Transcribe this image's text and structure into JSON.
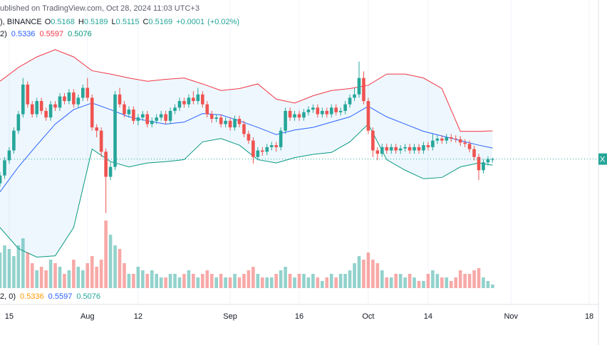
{
  "chart_data": {
    "type": "candlestick",
    "header": "ublished on TradingView.com, Oct 28, 2024 11:03 UTC+3",
    "symbol": "), BINANCE",
    "ohlc_labels": [
      "O",
      "H",
      "L",
      "C"
    ],
    "change": "+0.0001",
    "change_pct": "(+0.02%)",
    "indicator_label": "2)",
    "volume_indicator_label": "2, 0)",
    "price_label": "X",
    "up_color": "#26a69a",
    "down_color": "#ef5350",
    "xlim": [
      "2024-07-13",
      "2024-11-20"
    ],
    "ylim": [
      0.321,
      0.726
    ],
    "volume_lim": [
      0,
      100
    ],
    "xticks": [
      {
        "value": "2024-07-15",
        "label": "15"
      },
      {
        "value": "2024-08-01",
        "label": "Aug"
      },
      {
        "value": "2024-08-12",
        "label": "12"
      },
      {
        "value": "2024-09-01",
        "label": "Sep"
      },
      {
        "value": "2024-09-16",
        "label": "16"
      },
      {
        "value": "2024-10-01",
        "label": "Oct"
      },
      {
        "value": "2024-10-14",
        "label": "14"
      },
      {
        "value": "2024-11-01",
        "label": "Nov"
      },
      {
        "value": "2024-11-18",
        "label": "18"
      }
    ],
    "x": [
      "2024-07-13",
      "2024-07-14",
      "2024-07-15",
      "2024-07-16",
      "2024-07-17",
      "2024-07-18",
      "2024-07-19",
      "2024-07-20",
      "2024-07-21",
      "2024-07-22",
      "2024-07-23",
      "2024-07-24",
      "2024-07-25",
      "2024-07-26",
      "2024-07-27",
      "2024-07-28",
      "2024-07-29",
      "2024-07-30",
      "2024-07-31",
      "2024-08-01",
      "2024-08-02",
      "2024-08-03",
      "2024-08-04",
      "2024-08-05",
      "2024-08-06",
      "2024-08-07",
      "2024-08-08",
      "2024-08-09",
      "2024-08-10",
      "2024-08-11",
      "2024-08-12",
      "2024-08-13",
      "2024-08-14",
      "2024-08-15",
      "2024-08-16",
      "2024-08-17",
      "2024-08-18",
      "2024-08-19",
      "2024-08-20",
      "2024-08-21",
      "2024-08-22",
      "2024-08-23",
      "2024-08-24",
      "2024-08-25",
      "2024-08-26",
      "2024-08-27",
      "2024-08-28",
      "2024-08-29",
      "2024-08-30",
      "2024-08-31",
      "2024-09-01",
      "2024-09-02",
      "2024-09-03",
      "2024-09-04",
      "2024-09-05",
      "2024-09-06",
      "2024-09-07",
      "2024-09-08",
      "2024-09-09",
      "2024-09-10",
      "2024-09-11",
      "2024-09-12",
      "2024-09-13",
      "2024-09-14",
      "2024-09-15",
      "2024-09-16",
      "2024-09-17",
      "2024-09-18",
      "2024-09-19",
      "2024-09-20",
      "2024-09-21",
      "2024-09-22",
      "2024-09-23",
      "2024-09-24",
      "2024-09-25",
      "2024-09-26",
      "2024-09-27",
      "2024-09-28",
      "2024-09-29",
      "2024-09-30",
      "2024-10-01",
      "2024-10-02",
      "2024-10-03",
      "2024-10-04",
      "2024-10-05",
      "2024-10-06",
      "2024-10-07",
      "2024-10-08",
      "2024-10-09",
      "2024-10-10",
      "2024-10-11",
      "2024-10-12",
      "2024-10-13",
      "2024-10-14",
      "2024-10-15",
      "2024-10-16",
      "2024-10-17",
      "2024-10-18",
      "2024-10-19",
      "2024-10-20",
      "2024-10-21",
      "2024-10-22",
      "2024-10-23",
      "2024-10-24",
      "2024-10-25",
      "2024-10-26",
      "2024-10-27",
      "2024-10-28"
    ],
    "open": [
      0.48,
      0.492,
      0.515,
      0.53,
      0.56,
      0.585,
      0.63,
      0.6,
      0.585,
      0.605,
      0.59,
      0.58,
      0.6,
      0.595,
      0.612,
      0.605,
      0.618,
      0.6,
      0.61,
      0.625,
      0.61,
      0.565,
      0.56,
      0.528,
      0.49,
      0.505,
      0.615,
      0.6,
      0.585,
      0.592,
      0.575,
      0.58,
      0.585,
      0.57,
      0.575,
      0.58,
      0.585,
      0.575,
      0.59,
      0.595,
      0.605,
      0.6,
      0.61,
      0.605,
      0.615,
      0.6,
      0.585,
      0.578,
      0.58,
      0.57,
      0.575,
      0.565,
      0.578,
      0.57,
      0.555,
      0.545,
      0.52,
      0.53,
      0.528,
      0.535,
      0.538,
      0.535,
      0.56,
      0.59,
      0.58,
      0.585,
      0.58,
      0.588,
      0.592,
      0.595,
      0.585,
      0.59,
      0.585,
      0.595,
      0.588,
      0.59,
      0.6,
      0.61,
      0.615,
      0.64,
      0.605,
      0.56,
      0.53,
      0.525,
      0.535,
      0.53,
      0.535,
      0.53,
      0.533,
      0.535,
      0.53,
      0.535,
      0.53,
      0.538,
      0.535,
      0.545,
      0.548,
      0.545,
      0.55,
      0.548,
      0.547,
      0.542,
      0.54,
      0.532,
      0.52,
      0.5,
      0.512,
      0.5168
    ],
    "high": [
      0.497,
      0.52,
      0.535,
      0.565,
      0.59,
      0.64,
      0.635,
      0.605,
      0.61,
      0.61,
      0.595,
      0.605,
      0.605,
      0.617,
      0.617,
      0.623,
      0.623,
      0.615,
      0.63,
      0.64,
      0.615,
      0.57,
      0.565,
      0.533,
      0.512,
      0.62,
      0.625,
      0.605,
      0.597,
      0.597,
      0.585,
      0.59,
      0.59,
      0.58,
      0.585,
      0.59,
      0.59,
      0.595,
      0.6,
      0.61,
      0.61,
      0.615,
      0.62,
      0.625,
      0.62,
      0.605,
      0.59,
      0.585,
      0.585,
      0.58,
      0.58,
      0.583,
      0.583,
      0.575,
      0.56,
      0.55,
      0.535,
      0.535,
      0.54,
      0.543,
      0.543,
      0.565,
      0.595,
      0.595,
      0.59,
      0.59,
      0.593,
      0.597,
      0.6,
      0.6,
      0.595,
      0.595,
      0.6,
      0.6,
      0.595,
      0.605,
      0.615,
      0.625,
      0.665,
      0.65,
      0.61,
      0.565,
      0.535,
      0.54,
      0.54,
      0.54,
      0.54,
      0.538,
      0.54,
      0.54,
      0.54,
      0.54,
      0.543,
      0.543,
      0.555,
      0.553,
      0.553,
      0.555,
      0.555,
      0.553,
      0.552,
      0.547,
      0.545,
      0.537,
      0.525,
      0.517,
      0.521,
      0.5189
    ],
    "low": [
      0.475,
      0.487,
      0.51,
      0.525,
      0.555,
      0.58,
      0.595,
      0.58,
      0.58,
      0.585,
      0.575,
      0.575,
      0.59,
      0.59,
      0.6,
      0.6,
      0.595,
      0.595,
      0.605,
      0.605,
      0.56,
      0.55,
      0.52,
      0.435,
      0.485,
      0.5,
      0.595,
      0.58,
      0.58,
      0.57,
      0.568,
      0.575,
      0.565,
      0.565,
      0.57,
      0.575,
      0.57,
      0.57,
      0.585,
      0.59,
      0.595,
      0.595,
      0.6,
      0.6,
      0.595,
      0.58,
      0.572,
      0.573,
      0.565,
      0.565,
      0.56,
      0.56,
      0.565,
      0.55,
      0.54,
      0.51,
      0.515,
      0.522,
      0.523,
      0.53,
      0.528,
      0.53,
      0.555,
      0.575,
      0.575,
      0.575,
      0.575,
      0.583,
      0.587,
      0.58,
      0.58,
      0.58,
      0.58,
      0.583,
      0.583,
      0.585,
      0.595,
      0.605,
      0.61,
      0.6,
      0.555,
      0.52,
      0.515,
      0.52,
      0.525,
      0.525,
      0.525,
      0.525,
      0.528,
      0.525,
      0.525,
      0.525,
      0.525,
      0.53,
      0.53,
      0.54,
      0.54,
      0.54,
      0.543,
      0.542,
      0.537,
      0.535,
      0.527,
      0.515,
      0.485,
      0.495,
      0.507,
      0.5115
    ],
    "close": [
      0.492,
      0.515,
      0.53,
      0.56,
      0.585,
      0.63,
      0.6,
      0.585,
      0.605,
      0.59,
      0.58,
      0.6,
      0.595,
      0.612,
      0.605,
      0.618,
      0.6,
      0.61,
      0.625,
      0.61,
      0.565,
      0.56,
      0.528,
      0.49,
      0.505,
      0.615,
      0.6,
      0.585,
      0.592,
      0.575,
      0.58,
      0.585,
      0.57,
      0.575,
      0.58,
      0.585,
      0.575,
      0.59,
      0.595,
      0.605,
      0.6,
      0.61,
      0.605,
      0.615,
      0.6,
      0.585,
      0.578,
      0.58,
      0.57,
      0.575,
      0.565,
      0.578,
      0.57,
      0.555,
      0.545,
      0.52,
      0.53,
      0.528,
      0.535,
      0.538,
      0.535,
      0.56,
      0.59,
      0.58,
      0.585,
      0.58,
      0.588,
      0.592,
      0.595,
      0.585,
      0.59,
      0.585,
      0.595,
      0.588,
      0.59,
      0.6,
      0.61,
      0.615,
      0.64,
      0.605,
      0.56,
      0.53,
      0.525,
      0.535,
      0.53,
      0.535,
      0.53,
      0.533,
      0.535,
      0.53,
      0.535,
      0.53,
      0.538,
      0.535,
      0.545,
      0.548,
      0.545,
      0.55,
      0.548,
      0.547,
      0.542,
      0.54,
      0.532,
      0.52,
      0.5,
      0.512,
      0.5168,
      0.5169
    ],
    "volume": [
      50,
      60,
      55,
      45,
      60,
      70,
      50,
      35,
      25,
      30,
      25,
      40,
      35,
      30,
      20,
      25,
      40,
      30,
      25,
      35,
      45,
      30,
      40,
      95,
      75,
      60,
      55,
      35,
      20,
      20,
      30,
      25,
      20,
      25,
      20,
      15,
      15,
      20,
      20,
      15,
      20,
      25,
      20,
      15,
      20,
      25,
      20,
      15,
      20,
      15,
      15,
      20,
      15,
      20,
      25,
      30,
      20,
      15,
      15,
      15,
      20,
      25,
      30,
      20,
      15,
      20,
      20,
      15,
      20,
      15,
      10,
      15,
      20,
      15,
      20,
      20,
      25,
      35,
      45,
      40,
      50,
      40,
      35,
      25,
      15,
      15,
      20,
      20,
      15,
      20,
      15,
      10,
      10,
      20,
      25,
      20,
      15,
      15,
      10,
      15,
      25,
      20,
      20,
      25,
      28,
      15,
      10,
      5
    ],
    "bands": {
      "fill": "rgba(33,150,243,0.08)",
      "x": [
        "2024-07-13",
        "2024-07-17",
        "2024-07-21",
        "2024-07-25",
        "2024-07-29",
        "2024-08-02",
        "2024-08-06",
        "2024-08-10",
        "2024-08-14",
        "2024-08-18",
        "2024-08-22",
        "2024-08-26",
        "2024-08-30",
        "2024-09-03",
        "2024-09-07",
        "2024-09-11",
        "2024-09-15",
        "2024-09-19",
        "2024-09-23",
        "2024-09-27",
        "2024-10-01",
        "2024-10-05",
        "2024-10-09",
        "2024-10-13",
        "2024-10-17",
        "2024-10-21",
        "2024-10-25",
        "2024-10-28"
      ],
      "series": [
        {
          "color": "#2962ff",
          "values": [
            0.467,
            0.505,
            0.538,
            0.57,
            0.592,
            0.602,
            0.592,
            0.581,
            0.575,
            0.57,
            0.573,
            0.586,
            0.584,
            0.575,
            0.565,
            0.554,
            0.561,
            0.565,
            0.573,
            0.581,
            0.597,
            0.581,
            0.57,
            0.559,
            0.552,
            0.545,
            0.538,
            0.5336
          ]
        },
        {
          "color": "#f23645",
          "values": [
            0.635,
            0.656,
            0.672,
            0.683,
            0.672,
            0.651,
            0.646,
            0.64,
            0.635,
            0.638,
            0.64,
            0.631,
            0.621,
            0.624,
            0.631,
            0.608,
            0.602,
            0.613,
            0.621,
            0.624,
            0.629,
            0.646,
            0.646,
            0.64,
            0.624,
            0.559,
            0.559,
            0.5597
          ]
        },
        {
          "color": "#089981",
          "values": [
            0.413,
            0.381,
            0.368,
            0.37,
            0.413,
            0.532,
            0.513,
            0.505,
            0.511,
            0.513,
            0.516,
            0.543,
            0.548,
            0.538,
            0.516,
            0.511,
            0.519,
            0.524,
            0.527,
            0.543,
            0.57,
            0.516,
            0.5,
            0.487,
            0.489,
            0.505,
            0.511,
            0.5076
          ]
        }
      ]
    }
  }
}
